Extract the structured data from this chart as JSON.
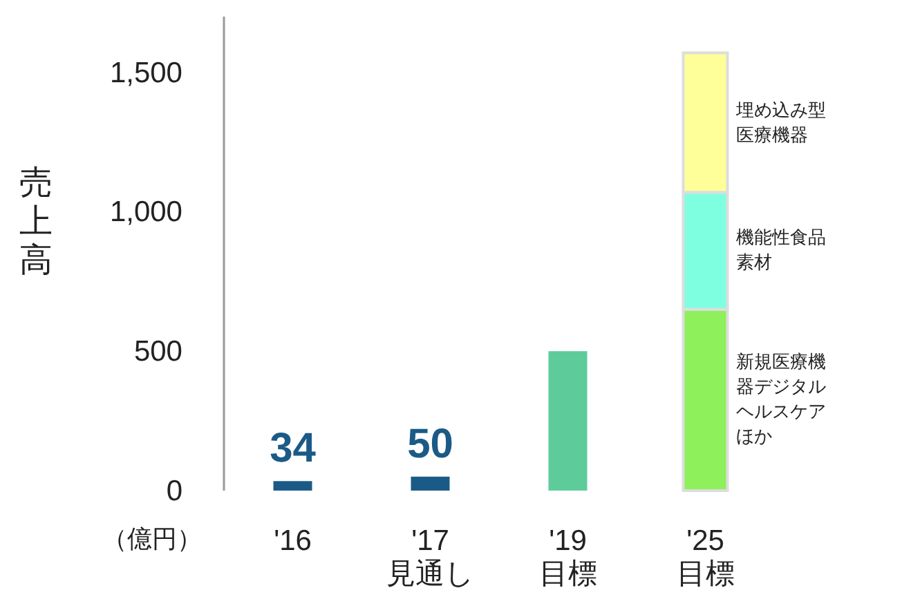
{
  "chart_data": {
    "type": "bar",
    "stacked": true,
    "categories": [
      "'16",
      "'17\n見通し",
      "'19\n目標",
      "'25\n目標"
    ],
    "ylabel": "売上高",
    "annotations": [
      "（億円）"
    ],
    "ylim": [
      0,
      1700
    ],
    "yticks": [
      0,
      500,
      {
        "value": 1000,
        "label": "1,000"
      },
      {
        "value": 1500,
        "label": "1,500"
      }
    ],
    "grid": false,
    "series": [
      {
        "colors": [
          "#1b5a87",
          "#1b5a87",
          "#5ecb9a",
          null
        ],
        "values": [
          34,
          50,
          500,
          null
        ],
        "value_labels": [
          "34",
          "50",
          null,
          null
        ]
      },
      {
        "name": "新規医療機器デジタルヘルスケアほか",
        "color": "#8ef05a",
        "values": [
          null,
          null,
          null,
          650
        ]
      },
      {
        "name": "機能性食品素材",
        "color": "#7effe0",
        "values": [
          null,
          null,
          null,
          420
        ]
      },
      {
        "name": "埋め込み型医療機器",
        "color": "#ffff99",
        "values": [
          null,
          null,
          null,
          500
        ]
      }
    ]
  }
}
